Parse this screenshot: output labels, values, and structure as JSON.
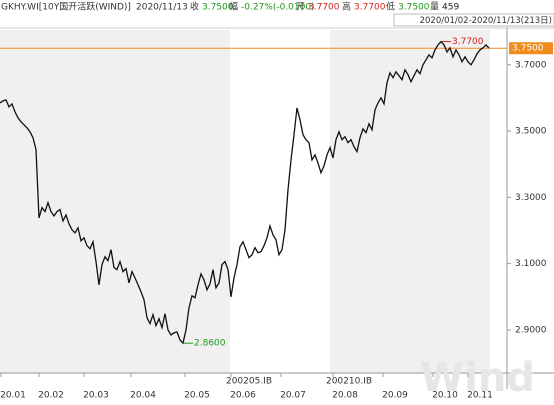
{
  "chart_data": {
    "type": "line",
    "header": {
      "security": "GKHY.WI[10Y国开活跃(WIND)]",
      "date": "2020/11/13",
      "fields": [
        {
          "label": "收",
          "value": "3.7500",
          "color": "#1a9a1a"
        },
        {
          "label": "幅",
          "value": "-0.27%(-0.0100)",
          "color": "#1a9a1a"
        },
        {
          "label": "开",
          "value": "3.7700",
          "color": "#d42020"
        },
        {
          "label": "高",
          "value": "3.7700",
          "color": "#d42020"
        },
        {
          "label": "低",
          "value": "3.7500",
          "color": "#1a9a1a"
        },
        {
          "label": "量",
          "value": "459",
          "color": "#222222"
        }
      ]
    },
    "range_label": "2020/01/02-2020/11/13(213日)",
    "xticks": [
      "20.01",
      "20.02",
      "20.03",
      "20.04",
      "20.05",
      "20.06",
      "20.07",
      "20.08",
      "20.09",
      "20.10",
      "20.11"
    ],
    "contract_labels": [
      "200205.IB",
      "200210.IB"
    ],
    "ylim": [
      2.77,
      3.805
    ],
    "yticks": [
      {
        "value": 3.7,
        "label": "3.7000"
      },
      {
        "value": 3.5,
        "label": "3.5000"
      },
      {
        "value": 3.3,
        "label": "3.3000"
      },
      {
        "value": 3.1,
        "label": "3.1000"
      },
      {
        "value": 2.9,
        "label": "2.9000"
      }
    ],
    "color": "#111111",
    "last_color": "#f08c1e",
    "max_label": "3.7700",
    "min_label": "2.8600",
    "last_label": "3.7500",
    "watermark": "Wind",
    "values": [
      3.585,
      3.591,
      3.594,
      3.573,
      3.582,
      3.558,
      3.54,
      3.528,
      3.519,
      3.51,
      3.498,
      3.48,
      3.444,
      3.238,
      3.269,
      3.257,
      3.284,
      3.257,
      3.244,
      3.257,
      3.263,
      3.229,
      3.247,
      3.22,
      3.202,
      3.193,
      3.208,
      3.169,
      3.178,
      3.154,
      3.145,
      3.166,
      3.106,
      3.036,
      3.097,
      3.121,
      3.109,
      3.142,
      3.088,
      3.082,
      3.106,
      3.076,
      3.085,
      3.042,
      3.076,
      3.057,
      3.036,
      3.015,
      2.991,
      2.937,
      2.919,
      2.946,
      2.913,
      2.934,
      2.907,
      2.949,
      2.9,
      2.885,
      2.891,
      2.894,
      2.87,
      2.86,
      2.9,
      2.967,
      3.003,
      2.997,
      3.036,
      3.069,
      3.051,
      3.021,
      3.039,
      3.082,
      3.027,
      3.042,
      3.097,
      3.106,
      3.082,
      3.0,
      3.057,
      3.097,
      3.151,
      3.166,
      3.142,
      3.118,
      3.127,
      3.148,
      3.133,
      3.136,
      3.154,
      3.178,
      3.214,
      3.187,
      3.172,
      3.127,
      3.142,
      3.202,
      3.323,
      3.413,
      3.489,
      3.57,
      3.534,
      3.489,
      3.474,
      3.465,
      3.413,
      3.428,
      3.404,
      3.374,
      3.395,
      3.428,
      3.45,
      3.419,
      3.474,
      3.498,
      3.474,
      3.483,
      3.465,
      3.474,
      3.453,
      3.438,
      3.48,
      3.507,
      3.495,
      3.522,
      3.504,
      3.564,
      3.585,
      3.6,
      3.582,
      3.646,
      3.676,
      3.661,
      3.679,
      3.667,
      3.655,
      3.685,
      3.67,
      3.649,
      3.667,
      3.685,
      3.673,
      3.7,
      3.715,
      3.73,
      3.721,
      3.745,
      3.76,
      3.77,
      3.76,
      3.739,
      3.751,
      3.724,
      3.745,
      3.73,
      3.709,
      3.724,
      3.709,
      3.7,
      3.715,
      3.733,
      3.745,
      3.751,
      3.76,
      3.75
    ]
  }
}
